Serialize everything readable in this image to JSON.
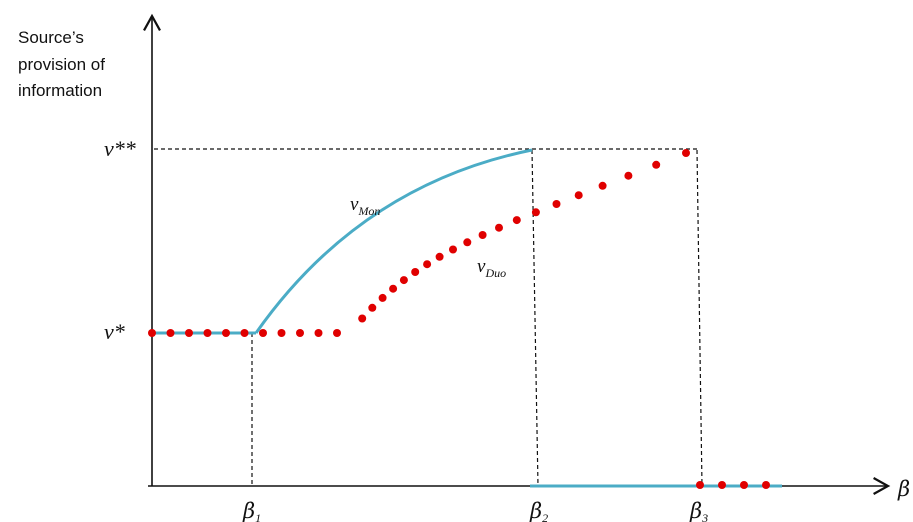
{
  "y_axis": {
    "title_lines": [
      "Source’s",
      "provision of",
      "information"
    ],
    "ticks": [
      {
        "label": "v**"
      },
      {
        "label": "v*"
      }
    ]
  },
  "x_axis": {
    "symbol": "β",
    "ticks": [
      {
        "symbol": "β",
        "sub": "1"
      },
      {
        "symbol": "β",
        "sub": "2"
      },
      {
        "symbol": "β",
        "sub": "3"
      }
    ]
  },
  "curves": {
    "mon": {
      "symbol": "v",
      "sub": "Mon",
      "color": "#4bacc6"
    },
    "duo": {
      "symbol": "v",
      "sub": "Duo",
      "color": "#e00000"
    }
  }
}
